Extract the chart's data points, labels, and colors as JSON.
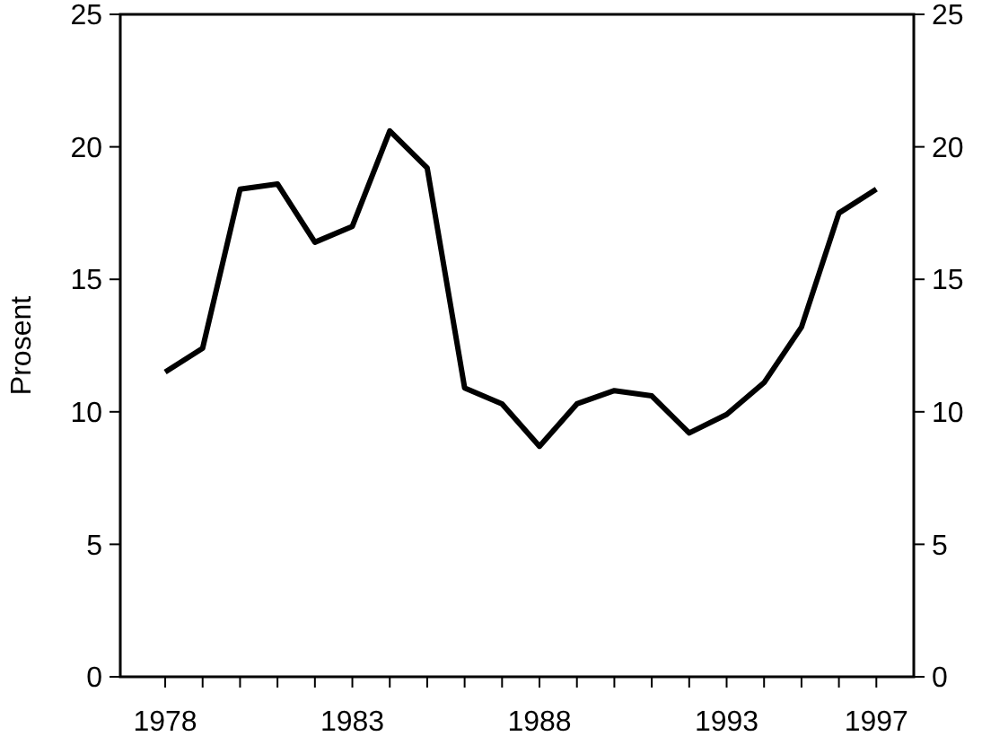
{
  "chart_data": {
    "type": "line",
    "ylabel": "Prosent",
    "x": [
      1978,
      1979,
      1980,
      1981,
      1982,
      1983,
      1984,
      1985,
      1986,
      1987,
      1988,
      1989,
      1990,
      1991,
      1992,
      1993,
      1994,
      1995,
      1996,
      1997
    ],
    "series": [
      {
        "color": "#000000",
        "values": [
          11.5,
          12.4,
          18.4,
          18.6,
          16.4,
          17.0,
          20.6,
          19.2,
          10.9,
          10.3,
          8.7,
          10.3,
          10.8,
          10.6,
          9.2,
          9.9,
          11.1,
          13.2,
          17.5,
          18.4
        ]
      }
    ],
    "xlim": [
      1976.8,
      1998
    ],
    "xticks": [
      {
        "value": 1978,
        "label": "1978"
      },
      {
        "value": 1979,
        "label": null
      },
      {
        "value": 1980,
        "label": null
      },
      {
        "value": 1981,
        "label": null
      },
      {
        "value": 1982,
        "label": null
      },
      {
        "value": 1983,
        "label": "1983"
      },
      {
        "value": 1984,
        "label": null
      },
      {
        "value": 1985,
        "label": null
      },
      {
        "value": 1986,
        "label": null
      },
      {
        "value": 1987,
        "label": null
      },
      {
        "value": 1988,
        "label": "1988"
      },
      {
        "value": 1989,
        "label": null
      },
      {
        "value": 1990,
        "label": null
      },
      {
        "value": 1991,
        "label": null
      },
      {
        "value": 1992,
        "label": null
      },
      {
        "value": 1993,
        "label": "1993"
      },
      {
        "value": 1994,
        "label": null
      },
      {
        "value": 1995,
        "label": null
      },
      {
        "value": 1996,
        "label": null
      },
      {
        "value": 1997,
        "label": "1997"
      }
    ],
    "ylim": [
      0,
      25
    ],
    "yticks": [
      0,
      5,
      10,
      15,
      20,
      25
    ],
    "y2lim": [
      0,
      25
    ],
    "y2ticks": [
      0,
      5,
      10,
      15,
      20,
      25
    ],
    "grid": false,
    "marker": "none",
    "line_style": "solid"
  }
}
